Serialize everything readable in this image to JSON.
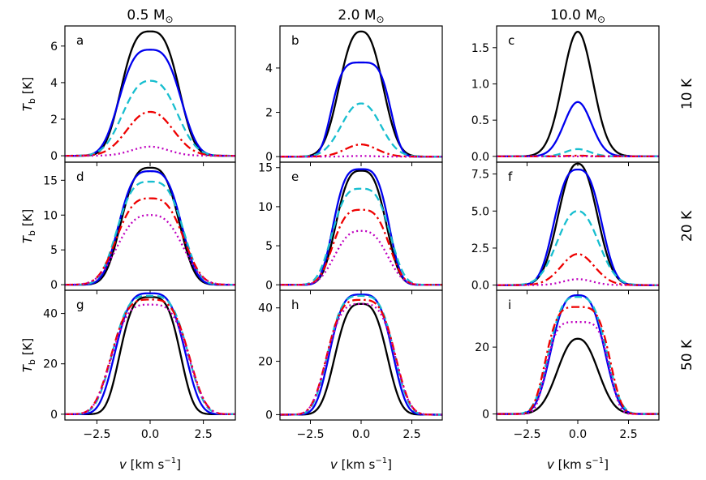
{
  "chart_data": {
    "type": "line",
    "figure": "Model spectral line profiles Tb vs velocity for three masses and three temperatures",
    "columns": [
      {
        "title_num": "0.5",
        "title_unit": "M",
        "title_sub": "⊙"
      },
      {
        "title_num": "2.0",
        "title_unit": "M",
        "title_sub": "⊙"
      },
      {
        "title_num": "10.0",
        "title_unit": "M",
        "title_sub": "⊙"
      }
    ],
    "rows": [
      {
        "label": "10 K"
      },
      {
        "label": "20 K"
      },
      {
        "label": "50 K"
      }
    ],
    "xlabel": {
      "sym": "v",
      "open": " [km s",
      "exp": "−1",
      "close": "]"
    },
    "ylabel": {
      "sym": "T",
      "sub": "b",
      "unit": " [K]"
    },
    "xlim": [
      -4,
      4
    ],
    "xticks": [
      -2.5,
      0.0,
      2.5
    ],
    "xtick_labels": [
      "−2.5",
      "0.0",
      "2.5"
    ],
    "series_styles": [
      {
        "name": "s1",
        "color": "#000000",
        "dash": "solid"
      },
      {
        "name": "s2",
        "color": "#0000ee",
        "dash": "solid"
      },
      {
        "name": "s3",
        "color": "#17becf",
        "dash": "dashed"
      },
      {
        "name": "s4",
        "color": "#ee0000",
        "dash": "dashdot"
      },
      {
        "name": "s5",
        "color": "#bf00bf",
        "dash": "dotted"
      }
    ],
    "panels": [
      {
        "letter": "a",
        "ylim": [
          -0.35,
          7.1
        ],
        "yticks": [
          0,
          2,
          4,
          6
        ],
        "ytick_labels": [
          "0",
          "2",
          "4",
          "6"
        ],
        "series": [
          {
            "peak": 6.8,
            "width": 1.6,
            "p": 3
          },
          {
            "peak": 5.8,
            "width": 1.7,
            "p": 3
          },
          {
            "peak": 4.1,
            "width": 1.6,
            "p": 2.5
          },
          {
            "peak": 2.4,
            "width": 1.45,
            "p": 2.2
          },
          {
            "peak": 0.5,
            "width": 1.2,
            "p": 2
          }
        ]
      },
      {
        "letter": "b",
        "ylim": [
          -0.25,
          5.9
        ],
        "yticks": [
          0,
          2,
          4
        ],
        "ytick_labels": [
          "0",
          "2",
          "4"
        ],
        "series": [
          {
            "peak": 5.65,
            "width": 1.35,
            "p": 2.5
          },
          {
            "peak": 4.25,
            "width": 1.6,
            "p": 4
          },
          {
            "peak": 2.4,
            "width": 1.3,
            "p": 2.2
          },
          {
            "peak": 0.55,
            "width": 1.1,
            "p": 2
          },
          {
            "peak": 0.03,
            "width": 0.9,
            "p": 2
          }
        ]
      },
      {
        "letter": "c",
        "ylim": [
          -0.08,
          1.8
        ],
        "yticks": [
          0.0,
          0.5,
          1.0,
          1.5
        ],
        "ytick_labels": [
          "0.0",
          "0.5",
          "1.0",
          "1.5"
        ],
        "series": [
          {
            "peak": 1.72,
            "width": 1.05,
            "p": 2
          },
          {
            "peak": 0.75,
            "width": 0.95,
            "p": 2
          },
          {
            "peak": 0.1,
            "width": 0.85,
            "p": 2
          },
          {
            "peak": 0.01,
            "width": 0.8,
            "p": 2
          },
          {
            "peak": 0.0,
            "width": 0.8,
            "p": 2
          }
        ]
      },
      {
        "letter": "d",
        "ylim": [
          -0.8,
          17.6
        ],
        "yticks": [
          0,
          5,
          10,
          15
        ],
        "ytick_labels": [
          "0",
          "5",
          "10",
          "15"
        ],
        "series": [
          {
            "peak": 16.8,
            "width": 1.6,
            "p": 3
          },
          {
            "peak": 16.3,
            "width": 1.7,
            "p": 3.2
          },
          {
            "peak": 14.8,
            "width": 1.8,
            "p": 3.2
          },
          {
            "peak": 12.4,
            "width": 1.85,
            "p": 3
          },
          {
            "peak": 10.0,
            "width": 1.85,
            "p": 2.8
          }
        ]
      },
      {
        "letter": "e",
        "ylim": [
          -0.7,
          15.7
        ],
        "yticks": [
          0,
          5,
          10,
          15
        ],
        "ytick_labels": [
          "0",
          "5",
          "10",
          "15"
        ],
        "series": [
          {
            "peak": 14.6,
            "width": 1.45,
            "p": 3
          },
          {
            "peak": 14.8,
            "width": 1.55,
            "p": 3.5
          },
          {
            "peak": 12.3,
            "width": 1.65,
            "p": 3.2
          },
          {
            "peak": 9.6,
            "width": 1.6,
            "p": 3.2
          },
          {
            "peak": 6.9,
            "width": 1.55,
            "p": 2.8
          }
        ]
      },
      {
        "letter": "f",
        "ylim": [
          -0.35,
          8.3
        ],
        "yticks": [
          0.0,
          2.5,
          5.0,
          7.5
        ],
        "ytick_labels": [
          "0.0",
          "2.5",
          "5.0",
          "7.5"
        ],
        "series": [
          {
            "peak": 8.2,
            "width": 1.25,
            "p": 2.3
          },
          {
            "peak": 7.8,
            "width": 1.4,
            "p": 2.8
          },
          {
            "peak": 5.0,
            "width": 1.35,
            "p": 2.2
          },
          {
            "peak": 2.1,
            "width": 1.15,
            "p": 2
          },
          {
            "peak": 0.4,
            "width": 1.0,
            "p": 2
          }
        ]
      },
      {
        "letter": "g",
        "ylim": [
          -2.3,
          49.2
        ],
        "yticks": [
          0,
          20,
          40
        ],
        "ytick_labels": [
          "0",
          "20",
          "40"
        ],
        "series": [
          {
            "peak": 46.5,
            "width": 1.6,
            "p": 3.5
          },
          {
            "peak": 48.0,
            "width": 1.85,
            "p": 3.5
          },
          {
            "peak": 47.0,
            "width": 2.0,
            "p": 3.5
          },
          {
            "peak": 45.5,
            "width": 2.05,
            "p": 3.5
          },
          {
            "peak": 43.5,
            "width": 2.05,
            "p": 3.5
          }
        ]
      },
      {
        "letter": "h",
        "ylim": [
          -2.0,
          46.6
        ],
        "yticks": [
          0,
          20,
          40
        ],
        "ytick_labels": [
          "0",
          "20",
          "40"
        ],
        "series": [
          {
            "peak": 41.5,
            "width": 1.5,
            "p": 3
          },
          {
            "peak": 45.0,
            "width": 1.75,
            "p": 3.5
          },
          {
            "peak": 44.5,
            "width": 1.85,
            "p": 3.5
          },
          {
            "peak": 43.0,
            "width": 1.9,
            "p": 3.5
          },
          {
            "peak": 41.5,
            "width": 1.9,
            "p": 3.5
          }
        ]
      },
      {
        "letter": "i",
        "ylim": [
          -1.8,
          37.0
        ],
        "yticks": [
          0,
          20
        ],
        "ytick_labels": [
          "0",
          "20"
        ],
        "series": [
          {
            "peak": 22.5,
            "width": 1.3,
            "p": 2.3
          },
          {
            "peak": 35.5,
            "width": 1.55,
            "p": 3
          },
          {
            "peak": 35.0,
            "width": 1.65,
            "p": 3.2
          },
          {
            "peak": 32.0,
            "width": 1.75,
            "p": 4
          },
          {
            "peak": 27.5,
            "width": 1.7,
            "p": 4.5
          }
        ]
      }
    ]
  }
}
